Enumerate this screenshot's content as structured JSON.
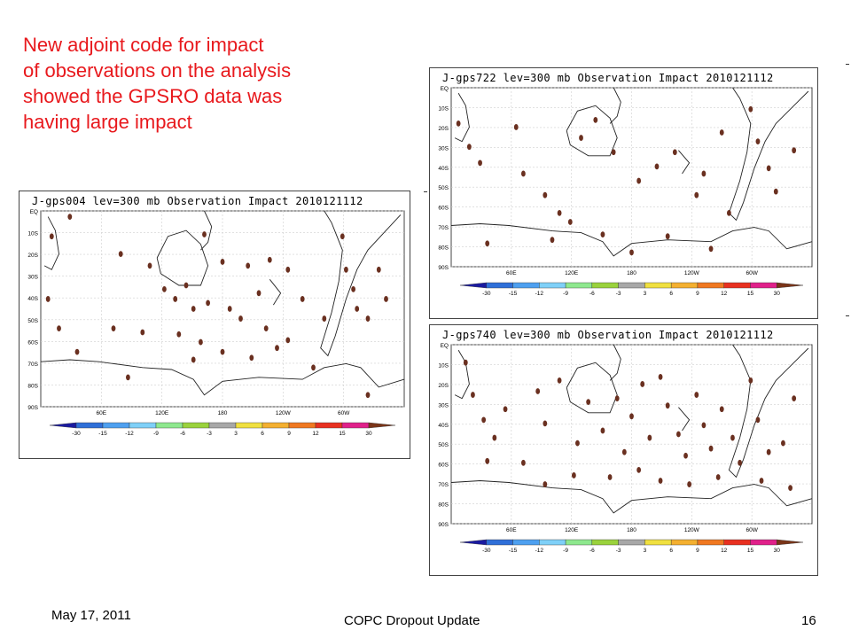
{
  "headline": [
    "New adjoint code for impact",
    "of observations on the analysis",
    "showed the GPSRO data was",
    "having large impact"
  ],
  "panels": [
    {
      "title": "J-gps004 lev=300 mb Observation Impact 2010121112"
    },
    {
      "title": "J-gps722 lev=300 mb Observation Impact 2010121112"
    },
    {
      "title": "J-gps740 lev=300 mb Observation Impact 2010121112"
    }
  ],
  "map_axis": {
    "lat_labels": [
      "EQ",
      "10S",
      "20S",
      "30S",
      "40S",
      "50S",
      "60S",
      "70S",
      "80S",
      "90S"
    ],
    "lon_labels": [
      "60E",
      "120E",
      "180",
      "120W",
      "60W"
    ]
  },
  "colorbar": {
    "labels": [
      "-30",
      "-15",
      "-12",
      "-9",
      "-6",
      "-3",
      "3",
      "6",
      "9",
      "12",
      "15",
      "30"
    ],
    "colors": [
      "#1a1aa0",
      "#2f6fd8",
      "#4ea0f0",
      "#7fd0f8",
      "#8ee88e",
      "#9ad23c",
      "#a8a8a8",
      "#f0e040",
      "#f4b030",
      "#f07820",
      "#e83020",
      "#e0208a",
      "#7a3418"
    ]
  },
  "colors": {
    "headline": "#e8191d",
    "obs_dot": "#6a3020",
    "coast": "#222222",
    "grid": "#cfcfcf"
  },
  "footer": {
    "date": "May 17, 2011",
    "title": "COPC Dropout Update",
    "page": "16"
  }
}
